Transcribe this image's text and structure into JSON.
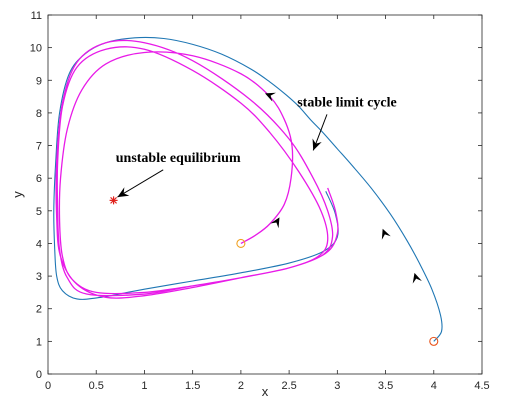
{
  "chart_data": {
    "type": "line",
    "title": "",
    "xlabel": "x",
    "ylabel": "y",
    "xlim": [
      0,
      4.5
    ],
    "ylim": [
      0,
      11
    ],
    "x_ticks": [
      "0",
      "0.5",
      "1",
      "1.5",
      "2",
      "2.5",
      "3",
      "3.5",
      "4",
      "4.5"
    ],
    "y_ticks": [
      "0",
      "1",
      "2",
      "3",
      "4",
      "5",
      "6",
      "7",
      "8",
      "9",
      "10",
      "11"
    ],
    "grid": false,
    "legend": null,
    "colors": {
      "outer_trajectory": "#1f77b4",
      "inner_trajectory": "#e81be8",
      "equilibrium": "#e0201b",
      "start_marker": "#e8541c",
      "start_marker_inner": "#f0a020",
      "axis": "#262626"
    },
    "series": [
      {
        "id": "outer",
        "x": [
          4.0,
          4.08,
          4.07,
          3.98,
          3.85,
          3.72,
          3.55,
          3.35,
          3.15,
          3.0,
          2.85,
          2.72,
          2.6,
          2.47,
          2.3,
          2.1,
          1.8,
          1.5,
          1.2,
          0.9,
          0.6,
          0.38,
          0.22,
          0.12,
          0.08,
          0.06,
          0.07,
          0.09,
          0.15,
          0.3,
          0.55,
          1.0,
          1.5,
          2.0,
          2.5,
          2.85,
          3.0,
          2.98,
          2.88
        ],
        "y": [
          1.0,
          1.3,
          1.8,
          2.6,
          3.4,
          4.1,
          4.9,
          5.7,
          6.4,
          6.9,
          7.4,
          7.8,
          8.2,
          8.55,
          8.95,
          9.35,
          9.8,
          10.1,
          10.28,
          10.3,
          10.15,
          9.8,
          9.2,
          8.0,
          6.5,
          5.0,
          3.8,
          3.0,
          2.55,
          2.3,
          2.35,
          2.6,
          2.85,
          3.1,
          3.4,
          3.75,
          4.2,
          4.9,
          5.6
        ]
      },
      {
        "id": "inner",
        "x": [
          2.0,
          2.15,
          2.3,
          2.45,
          2.52,
          2.53,
          2.45,
          2.3,
          2.0,
          1.5,
          1.0,
          0.6,
          0.35,
          0.2,
          0.13,
          0.12,
          0.15,
          0.25,
          0.5,
          1.0,
          1.5,
          2.0,
          2.5,
          2.8,
          2.9,
          2.83,
          2.6,
          2.3,
          2.0,
          1.5,
          1.0,
          0.6,
          0.3,
          0.15,
          0.1,
          0.1,
          0.12,
          0.2,
          0.4,
          1.0,
          1.5,
          2.0,
          2.5,
          2.85,
          2.95,
          2.9,
          2.75,
          2.5,
          2.1,
          1.5,
          1.0,
          0.6,
          0.3,
          0.15,
          0.09,
          0.09,
          0.13,
          0.3,
          0.6,
          1.0,
          1.5,
          2.0,
          2.5,
          2.88,
          3.0,
          2.98,
          2.9
        ],
        "y": [
          4.0,
          4.25,
          4.6,
          5.2,
          6.0,
          7.0,
          7.8,
          8.5,
          9.2,
          9.75,
          9.85,
          9.5,
          8.7,
          7.5,
          6.0,
          4.7,
          3.6,
          2.9,
          2.5,
          2.5,
          2.7,
          2.95,
          3.25,
          3.6,
          4.1,
          5.0,
          6.2,
          7.4,
          8.3,
          9.3,
          9.95,
          9.95,
          9.4,
          8.2,
          6.5,
          5.0,
          3.8,
          2.95,
          2.45,
          2.45,
          2.7,
          2.95,
          3.25,
          3.65,
          4.2,
          5.0,
          6.0,
          7.2,
          8.4,
          9.6,
          10.15,
          10.15,
          9.55,
          8.3,
          6.5,
          4.8,
          3.6,
          2.75,
          2.35,
          2.4,
          2.65,
          2.95,
          3.25,
          3.7,
          4.3,
          5.0,
          5.7
        ]
      }
    ],
    "arrows": [
      {
        "series": "outer",
        "x": 3.8,
        "y": 3.1,
        "dx": -0.03,
        "dy": 0.3
      },
      {
        "series": "outer",
        "x": 3.47,
        "y": 4.45,
        "dx": -0.04,
        "dy": 0.3
      },
      {
        "series": "inner",
        "x": 2.4,
        "y": 4.8,
        "dx": 0.06,
        "dy": 0.3
      },
      {
        "series": "inner",
        "x": 2.25,
        "y": 8.6,
        "dx": -0.18,
        "dy": 0.22
      }
    ],
    "equilibrium": {
      "x": 0.68,
      "y": 5.32
    },
    "start_points": [
      {
        "series": "outer",
        "x": 4.0,
        "y": 1.0
      },
      {
        "series": "inner",
        "x": 2.0,
        "y": 4.0
      }
    ],
    "annotations": [
      {
        "text": "stable limit cycle",
        "x": 3.1,
        "y": 8.2,
        "arrow_to_x": 2.75,
        "arrow_to_y": 6.85
      },
      {
        "text": "unstable equilibrium",
        "x": 1.35,
        "y": 6.5,
        "arrow_to_x": 0.72,
        "arrow_to_y": 5.42
      }
    ]
  }
}
